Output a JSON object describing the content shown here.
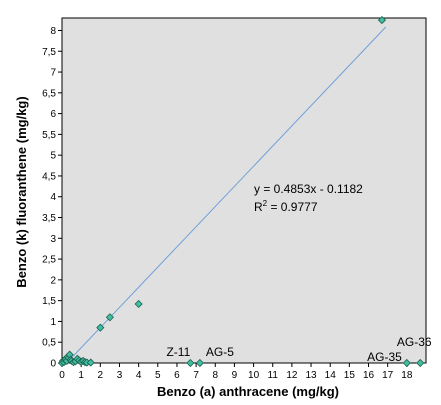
{
  "chart_data": {
    "type": "scatter",
    "xlabel": "Benzo (a) anthracene (mg/kg)",
    "ylabel": "Benzo (k) fluoranthene (mg/kg)",
    "xlim": [
      0,
      19
    ],
    "ylim": [
      0,
      8.3
    ],
    "xticks": [
      "0",
      "1",
      "2",
      "3",
      "4",
      "5",
      "6",
      "7",
      "8",
      "9",
      "10",
      "11",
      "12",
      "13",
      "14",
      "15",
      "16",
      "17",
      "18"
    ],
    "yticks": [
      "0",
      "0,5",
      "1",
      "1,5",
      "2",
      "2,5",
      "3",
      "3,5",
      "4",
      "4,5",
      "5",
      "5,5",
      "6",
      "6,5",
      "7",
      "7,5",
      "8"
    ],
    "grid": false,
    "background_color": "#e0e0e0",
    "marker_color": "#3dbfa0",
    "marker_shape": "diamond",
    "trendline_color": "#6fa0d8",
    "trendline": {
      "slope": 0.4853,
      "intercept": -0.1182,
      "x_start": 0.15,
      "x_end": 16.9
    },
    "equation": "y = 0.4853x - 0.1182",
    "r2_base": "R",
    "r2_sup": "2",
    "r2_rest": " = 0.9777",
    "points": [
      {
        "x": 0.0,
        "y": 0.0
      },
      {
        "x": 0.05,
        "y": 0.05
      },
      {
        "x": 0.1,
        "y": 0.02
      },
      {
        "x": 0.15,
        "y": 0.08
      },
      {
        "x": 0.2,
        "y": 0.1
      },
      {
        "x": 0.25,
        "y": 0.05
      },
      {
        "x": 0.3,
        "y": 0.15
      },
      {
        "x": 0.35,
        "y": 0.12
      },
      {
        "x": 0.4,
        "y": 0.2
      },
      {
        "x": 0.45,
        "y": 0.08
      },
      {
        "x": 0.5,
        "y": 0.05
      },
      {
        "x": 0.6,
        "y": 0.02
      },
      {
        "x": 0.7,
        "y": 0.04
      },
      {
        "x": 0.8,
        "y": 0.1
      },
      {
        "x": 0.9,
        "y": 0.06
      },
      {
        "x": 1.0,
        "y": 0.03
      },
      {
        "x": 1.1,
        "y": 0.05
      },
      {
        "x": 1.2,
        "y": 0.02
      },
      {
        "x": 1.3,
        "y": 0.01
      },
      {
        "x": 1.5,
        "y": 0.01
      },
      {
        "x": 2.0,
        "y": 0.85
      },
      {
        "x": 2.5,
        "y": 1.1
      },
      {
        "x": 4.0,
        "y": 1.42
      },
      {
        "x": 16.7,
        "y": 8.25
      },
      {
        "x": 6.7,
        "y": 0.0,
        "label": "Z-11"
      },
      {
        "x": 7.2,
        "y": 0.0,
        "label": "AG-5"
      },
      {
        "x": 18.0,
        "y": 0.0,
        "label": "AG-35"
      },
      {
        "x": 18.7,
        "y": 0.0,
        "label": "AG-36"
      }
    ]
  }
}
